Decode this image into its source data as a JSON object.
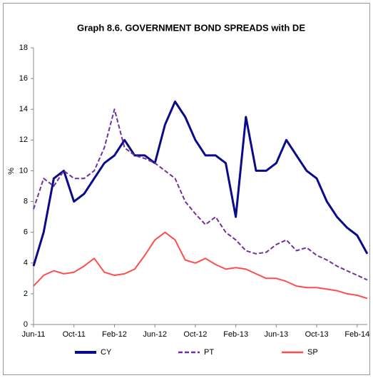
{
  "chart_data": {
    "type": "line",
    "title": "Graph 8.6. GOVERNMENT BOND SPREADS with DE",
    "y_label": "%",
    "x": [
      "Jun-11",
      "Jul-11",
      "Aug-11",
      "Sep-11",
      "Oct-11",
      "Nov-11",
      "Dec-11",
      "Jan-12",
      "Feb-12",
      "Mar-12",
      "Apr-12",
      "May-12",
      "Jun-12",
      "Jul-12",
      "Aug-12",
      "Sep-12",
      "Oct-12",
      "Nov-12",
      "Dec-12",
      "Jan-13",
      "Feb-13",
      "Mar-13",
      "Apr-13",
      "May-13",
      "Jun-13",
      "Jul-13",
      "Aug-13",
      "Sep-13",
      "Oct-13",
      "Nov-13",
      "Dec-13",
      "Jan-14",
      "Feb-14",
      "Mar-14"
    ],
    "xticks": [
      "Jun-11",
      "Oct-11",
      "Feb-12",
      "Jun-12",
      "Oct-12",
      "Feb-13",
      "Jun-13",
      "Oct-13",
      "Feb-14"
    ],
    "ylim": [
      0,
      18
    ],
    "yticks": [
      0,
      2,
      4,
      6,
      8,
      10,
      12,
      14,
      16,
      18
    ],
    "grid": false,
    "legend": "bottom",
    "series": [
      {
        "name": "CY",
        "color": "#0a0a8c",
        "style": "solid",
        "values": [
          3.8,
          6,
          9.5,
          10,
          8,
          8.5,
          9.5,
          10.5,
          11,
          12,
          11,
          11,
          10.5,
          13,
          14.5,
          13.5,
          12,
          11,
          11,
          10.5,
          7,
          13.5,
          10,
          10,
          10.5,
          12,
          11,
          10,
          9.5,
          8,
          7,
          6.3,
          5.8,
          4.6
        ]
      },
      {
        "name": "PT",
        "color": "#7030a0",
        "style": "dashed",
        "values": [
          7.5,
          9.5,
          9,
          10,
          9.5,
          9.5,
          10,
          11.5,
          14,
          11.5,
          11,
          10.8,
          10.5,
          10,
          9.5,
          8,
          7.2,
          6.5,
          7,
          6,
          5.5,
          4.8,
          4.6,
          4.7,
          5.2,
          5.5,
          4.8,
          5,
          4.5,
          4.2,
          3.8,
          3.5,
          3.2,
          2.9
        ]
      },
      {
        "name": "SP",
        "color": "#ff4d4d",
        "style": "solid",
        "values": [
          2.5,
          3.2,
          3.5,
          3.3,
          3.4,
          3.8,
          4.3,
          3.4,
          3.2,
          3.3,
          3.6,
          4.5,
          5.5,
          6,
          5.5,
          4.2,
          4,
          4.3,
          3.9,
          3.6,
          3.7,
          3.6,
          3.3,
          3,
          3,
          2.8,
          2.5,
          2.4,
          2.4,
          2.3,
          2.2,
          2,
          1.9,
          1.7
        ]
      }
    ]
  }
}
